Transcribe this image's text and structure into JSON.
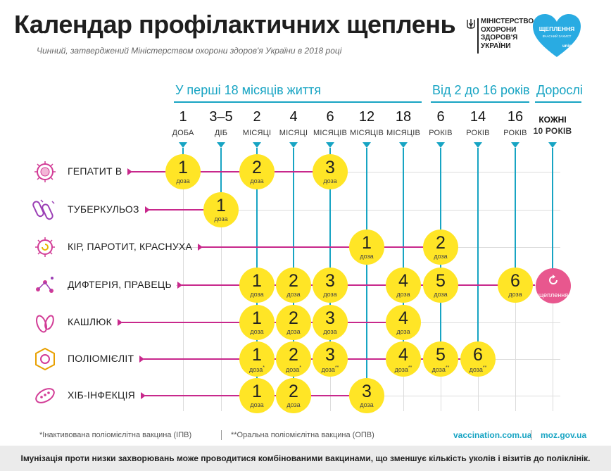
{
  "header": {
    "title": "Календар профілактичних щеплень",
    "subtitle": "Чинний, затверджений Міністерством охорони здоров'я України в 2018 році",
    "ministry_text": "МІНІСТЕРСТВО\nОХОРОНИ\nЗДОРОВ'Я\nУКРАЇНИ",
    "logo_line1": "ЩЕПЛЕННЯ",
    "logo_line2": "ВЧАСНИЙ ЗАХИСТ",
    "logo_unicef": "unicef"
  },
  "sections": {
    "infant": "У перші 18 місяців життя",
    "child": "Від 2 до 16 років",
    "adult": "Дорослі"
  },
  "ages": [
    {
      "num": "1",
      "unit": "ДОБА"
    },
    {
      "num": "3–5",
      "unit": "ДІБ"
    },
    {
      "num": "2",
      "unit": "МІСЯЦІ"
    },
    {
      "num": "4",
      "unit": "МІСЯЦІ"
    },
    {
      "num": "6",
      "unit": "МІСЯЦІВ"
    },
    {
      "num": "12",
      "unit": "МІСЯЦІВ"
    },
    {
      "num": "18",
      "unit": "МІСЯЦІВ"
    },
    {
      "num": "6",
      "unit": "РОКІВ"
    },
    {
      "num": "14",
      "unit": "РОКІВ"
    },
    {
      "num": "16",
      "unit": "РОКІВ"
    },
    {
      "num": "КОЖНІ",
      "unit": "10 РОКІВ"
    }
  ],
  "dose_label": "доза",
  "revaccination_label": "щеплення",
  "diseases": [
    {
      "name": "ГЕПАТИТ В",
      "icon": "hepatitis-virus-icon",
      "doses": [
        {
          "age": 0,
          "n": "1"
        },
        {
          "age": 2,
          "n": "2"
        },
        {
          "age": 4,
          "n": "3"
        }
      ]
    },
    {
      "name": "ТУБЕРКУЛЬОЗ",
      "icon": "bacillus-icon",
      "doses": [
        {
          "age": 1,
          "n": "1"
        }
      ]
    },
    {
      "name": "КІР, ПАРОТИТ, КРАСНУХА",
      "icon": "measles-virus-icon",
      "doses": [
        {
          "age": 5,
          "n": "1"
        },
        {
          "age": 7,
          "n": "2"
        }
      ]
    },
    {
      "name": "ДИФТЕРІЯ, ПРАВЕЦЬ",
      "icon": "diphtheria-bacteria-icon",
      "doses": [
        {
          "age": 2,
          "n": "1"
        },
        {
          "age": 3,
          "n": "2"
        },
        {
          "age": 4,
          "n": "3"
        },
        {
          "age": 6,
          "n": "4"
        },
        {
          "age": 7,
          "n": "5"
        },
        {
          "age": 9,
          "n": "6"
        }
      ]
    },
    {
      "name": "КАШЛЮК",
      "icon": "pertussis-bacteria-icon",
      "doses": [
        {
          "age": 2,
          "n": "1"
        },
        {
          "age": 3,
          "n": "2"
        },
        {
          "age": 4,
          "n": "3"
        },
        {
          "age": 6,
          "n": "4"
        }
      ]
    },
    {
      "name": "ПОЛІОМІЄЛІТ",
      "icon": "poliovirus-icon",
      "doses": [
        {
          "age": 2,
          "n": "1",
          "mark": "*"
        },
        {
          "age": 3,
          "n": "2",
          "mark": "*"
        },
        {
          "age": 4,
          "n": "3",
          "mark": "**"
        },
        {
          "age": 6,
          "n": "4",
          "mark": "**"
        },
        {
          "age": 7,
          "n": "5",
          "mark": "**"
        },
        {
          "age": 8,
          "n": "6",
          "mark": "**"
        }
      ]
    },
    {
      "name": "ХІБ-ІНФЕКЦІЯ",
      "icon": "hib-bacteria-icon",
      "doses": [
        {
          "age": 2,
          "n": "1"
        },
        {
          "age": 3,
          "n": "2"
        },
        {
          "age": 5,
          "n": "3"
        }
      ]
    }
  ],
  "footnotes": {
    "ipv": "*Інактивована поліомієлітна вакцина (ІПВ)",
    "opv": "**Оральна поліомієлітна вакцина (ОПВ)"
  },
  "links": {
    "site1": "vaccination.com.ua",
    "site2": "moz.gov.ua"
  },
  "footer": "Імунізація проти низки захворювань може проводитися комбінованими вакцинами, що зменшує кількість уколів і візитів до поліклінік.",
  "colors": {
    "accent": "#17a4c3",
    "magenta": "#c8288c",
    "dose": "#ffe526",
    "revaccination": "#e8578e"
  }
}
